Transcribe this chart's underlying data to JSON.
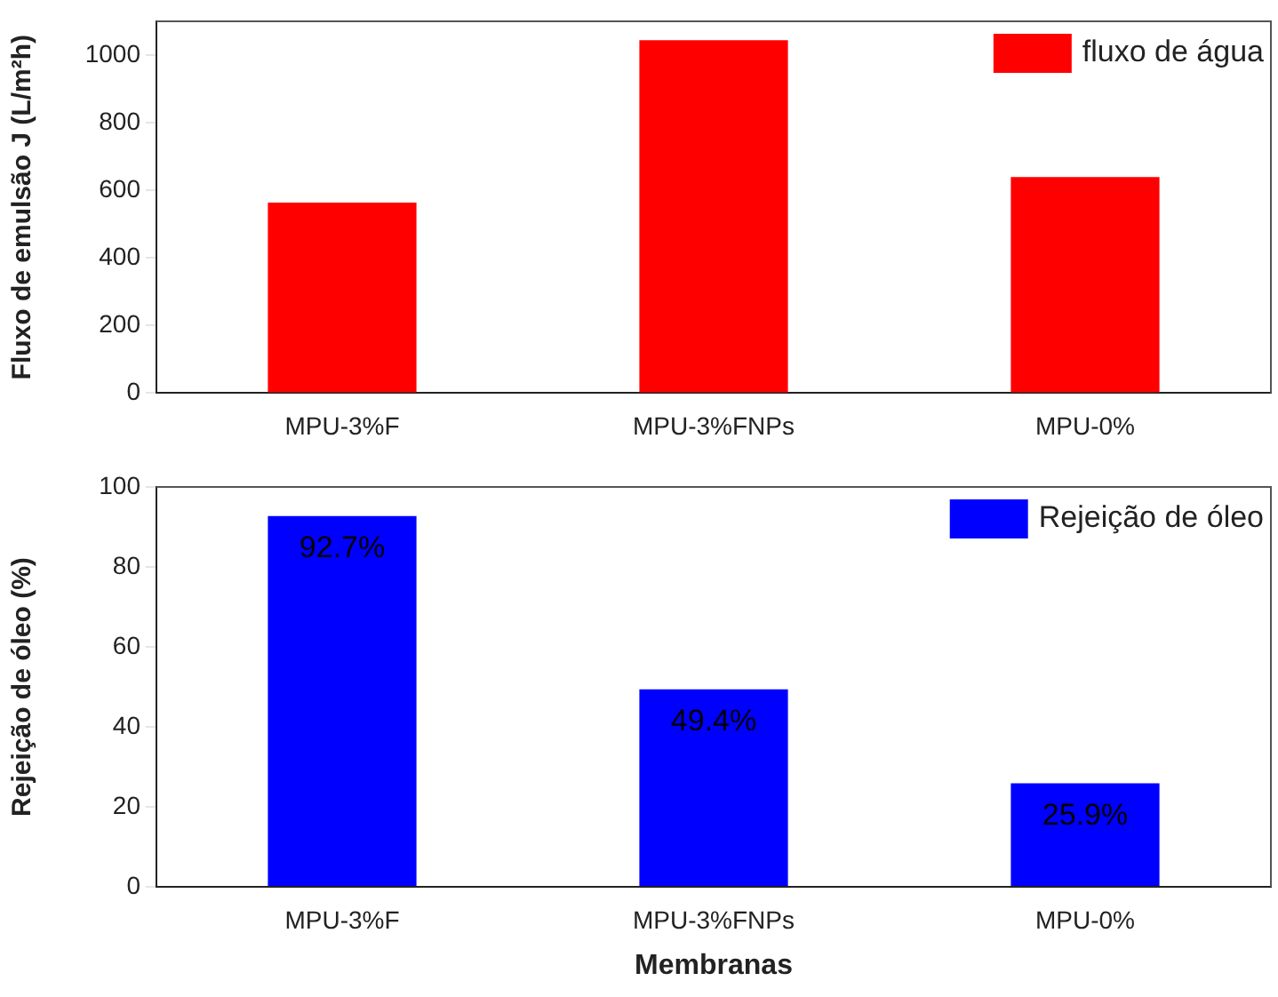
{
  "chart_data": [
    {
      "type": "bar",
      "ylabel": "Fluxo de emulsão J (L/m²h)",
      "categories": [
        "MPU-3%F",
        "MPU-3%FNPs",
        "MPU-0%"
      ],
      "series": [
        {
          "name": "fluxo de água",
          "color": "#ff0000",
          "values": [
            564,
            1044,
            639
          ]
        }
      ],
      "ylim": [
        0,
        1100
      ],
      "yticks": [
        0,
        200,
        400,
        600,
        800,
        1000
      ],
      "grid": false,
      "legend": "top right"
    },
    {
      "type": "bar",
      "ylabel": "Rejeição de óleo (%)",
      "xlabel": "Membranas",
      "categories": [
        "MPU-3%F",
        "MPU-3%FNPs",
        "MPU-0%"
      ],
      "series": [
        {
          "name": "Rejeição de óleo",
          "color": "#0000ff",
          "values": [
            92.7,
            49.4,
            25.9
          ],
          "value_labels": [
            "92.7%",
            "49.4%",
            "25.9%"
          ]
        }
      ],
      "ylim": [
        0,
        100
      ],
      "yticks": [
        0,
        20,
        40,
        60,
        80,
        100
      ],
      "grid": false,
      "legend": "top right"
    }
  ]
}
